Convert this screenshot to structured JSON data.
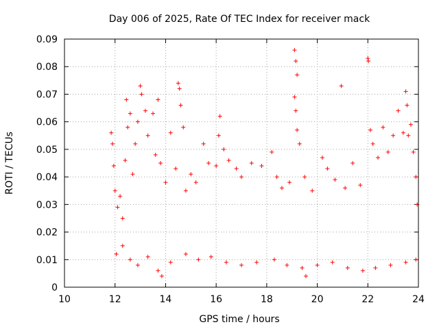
{
  "chart_data": {
    "type": "scatter",
    "title": "Day 006 of 2025, Rate Of TEC Index for receiver mack",
    "xlabel": "GPS time / hours",
    "ylabel": "ROTI / TECUs",
    "xlim": [
      10,
      24
    ],
    "ylim": [
      0,
      0.09
    ],
    "xticks": [
      10,
      12,
      14,
      16,
      18,
      20,
      22,
      24
    ],
    "xtick_labels": [
      "10",
      "12",
      "14",
      "16",
      "18",
      "20",
      "22",
      "24"
    ],
    "yticks": [
      0,
      0.01,
      0.02,
      0.03,
      0.04,
      0.05,
      0.06,
      0.07,
      0.08,
      0.09
    ],
    "ytick_labels": [
      "0",
      "0.01",
      "0.02",
      "0.03",
      "0.04",
      "0.05",
      "0.06",
      "0.07",
      "0.08",
      "0.09"
    ],
    "grid": true,
    "marker": "plus",
    "series": [
      {
        "color": "#ff0000",
        "points": [
          [
            11.85,
            0.056
          ],
          [
            11.9,
            0.052
          ],
          [
            11.95,
            0.044
          ],
          [
            12.0,
            0.035
          ],
          [
            12.1,
            0.029
          ],
          [
            12.2,
            0.033
          ],
          [
            12.3,
            0.025
          ],
          [
            12.4,
            0.046
          ],
          [
            12.45,
            0.068
          ],
          [
            12.5,
            0.058
          ],
          [
            12.6,
            0.063
          ],
          [
            12.7,
            0.041
          ],
          [
            12.8,
            0.052
          ],
          [
            12.9,
            0.06
          ],
          [
            13.0,
            0.073
          ],
          [
            13.05,
            0.07
          ],
          [
            13.2,
            0.064
          ],
          [
            13.3,
            0.055
          ],
          [
            13.5,
            0.063
          ],
          [
            13.6,
            0.048
          ],
          [
            13.7,
            0.068
          ],
          [
            13.8,
            0.045
          ],
          [
            14.0,
            0.038
          ],
          [
            14.2,
            0.056
          ],
          [
            14.4,
            0.043
          ],
          [
            14.5,
            0.074
          ],
          [
            14.55,
            0.072
          ],
          [
            14.6,
            0.066
          ],
          [
            14.7,
            0.058
          ],
          [
            14.8,
            0.035
          ],
          [
            15.0,
            0.041
          ],
          [
            15.2,
            0.038
          ],
          [
            15.5,
            0.052
          ],
          [
            15.7,
            0.045
          ],
          [
            16.0,
            0.044
          ],
          [
            16.1,
            0.055
          ],
          [
            16.15,
            0.062
          ],
          [
            16.3,
            0.05
          ],
          [
            16.5,
            0.046
          ],
          [
            16.8,
            0.043
          ],
          [
            17.0,
            0.04
          ],
          [
            17.4,
            0.045
          ],
          [
            17.8,
            0.044
          ],
          [
            18.2,
            0.049
          ],
          [
            18.4,
            0.04
          ],
          [
            18.6,
            0.036
          ],
          [
            18.9,
            0.038
          ],
          [
            19.1,
            0.086
          ],
          [
            19.15,
            0.082
          ],
          [
            19.2,
            0.077
          ],
          [
            19.1,
            0.069
          ],
          [
            19.15,
            0.064
          ],
          [
            19.2,
            0.057
          ],
          [
            19.3,
            0.052
          ],
          [
            19.5,
            0.04
          ],
          [
            19.8,
            0.035
          ],
          [
            20.2,
            0.047
          ],
          [
            20.4,
            0.043
          ],
          [
            20.7,
            0.039
          ],
          [
            20.95,
            0.073
          ],
          [
            21.1,
            0.036
          ],
          [
            21.4,
            0.045
          ],
          [
            21.7,
            0.037
          ],
          [
            22.0,
            0.083
          ],
          [
            22.02,
            0.082
          ],
          [
            22.1,
            0.057
          ],
          [
            22.2,
            0.052
          ],
          [
            22.4,
            0.047
          ],
          [
            22.6,
            0.058
          ],
          [
            22.8,
            0.049
          ],
          [
            23.0,
            0.055
          ],
          [
            23.2,
            0.064
          ],
          [
            23.4,
            0.056
          ],
          [
            23.5,
            0.071
          ],
          [
            23.55,
            0.066
          ],
          [
            23.6,
            0.055
          ],
          [
            23.7,
            0.059
          ],
          [
            23.8,
            0.049
          ],
          [
            23.9,
            0.04
          ],
          [
            23.95,
            0.03
          ],
          [
            12.05,
            0.012
          ],
          [
            12.3,
            0.015
          ],
          [
            12.6,
            0.01
          ],
          [
            12.9,
            0.008
          ],
          [
            13.3,
            0.011
          ],
          [
            13.7,
            0.006
          ],
          [
            13.85,
            0.004
          ],
          [
            14.2,
            0.009
          ],
          [
            14.8,
            0.012
          ],
          [
            15.3,
            0.01
          ],
          [
            15.8,
            0.011
          ],
          [
            16.4,
            0.009
          ],
          [
            17.0,
            0.008
          ],
          [
            17.6,
            0.009
          ],
          [
            18.3,
            0.01
          ],
          [
            18.8,
            0.008
          ],
          [
            19.4,
            0.007
          ],
          [
            19.55,
            0.004
          ],
          [
            20.0,
            0.008
          ],
          [
            20.6,
            0.009
          ],
          [
            21.2,
            0.007
          ],
          [
            21.8,
            0.006
          ],
          [
            22.3,
            0.007
          ],
          [
            22.9,
            0.008
          ],
          [
            23.5,
            0.009
          ],
          [
            23.9,
            0.01
          ]
        ]
      }
    ]
  }
}
